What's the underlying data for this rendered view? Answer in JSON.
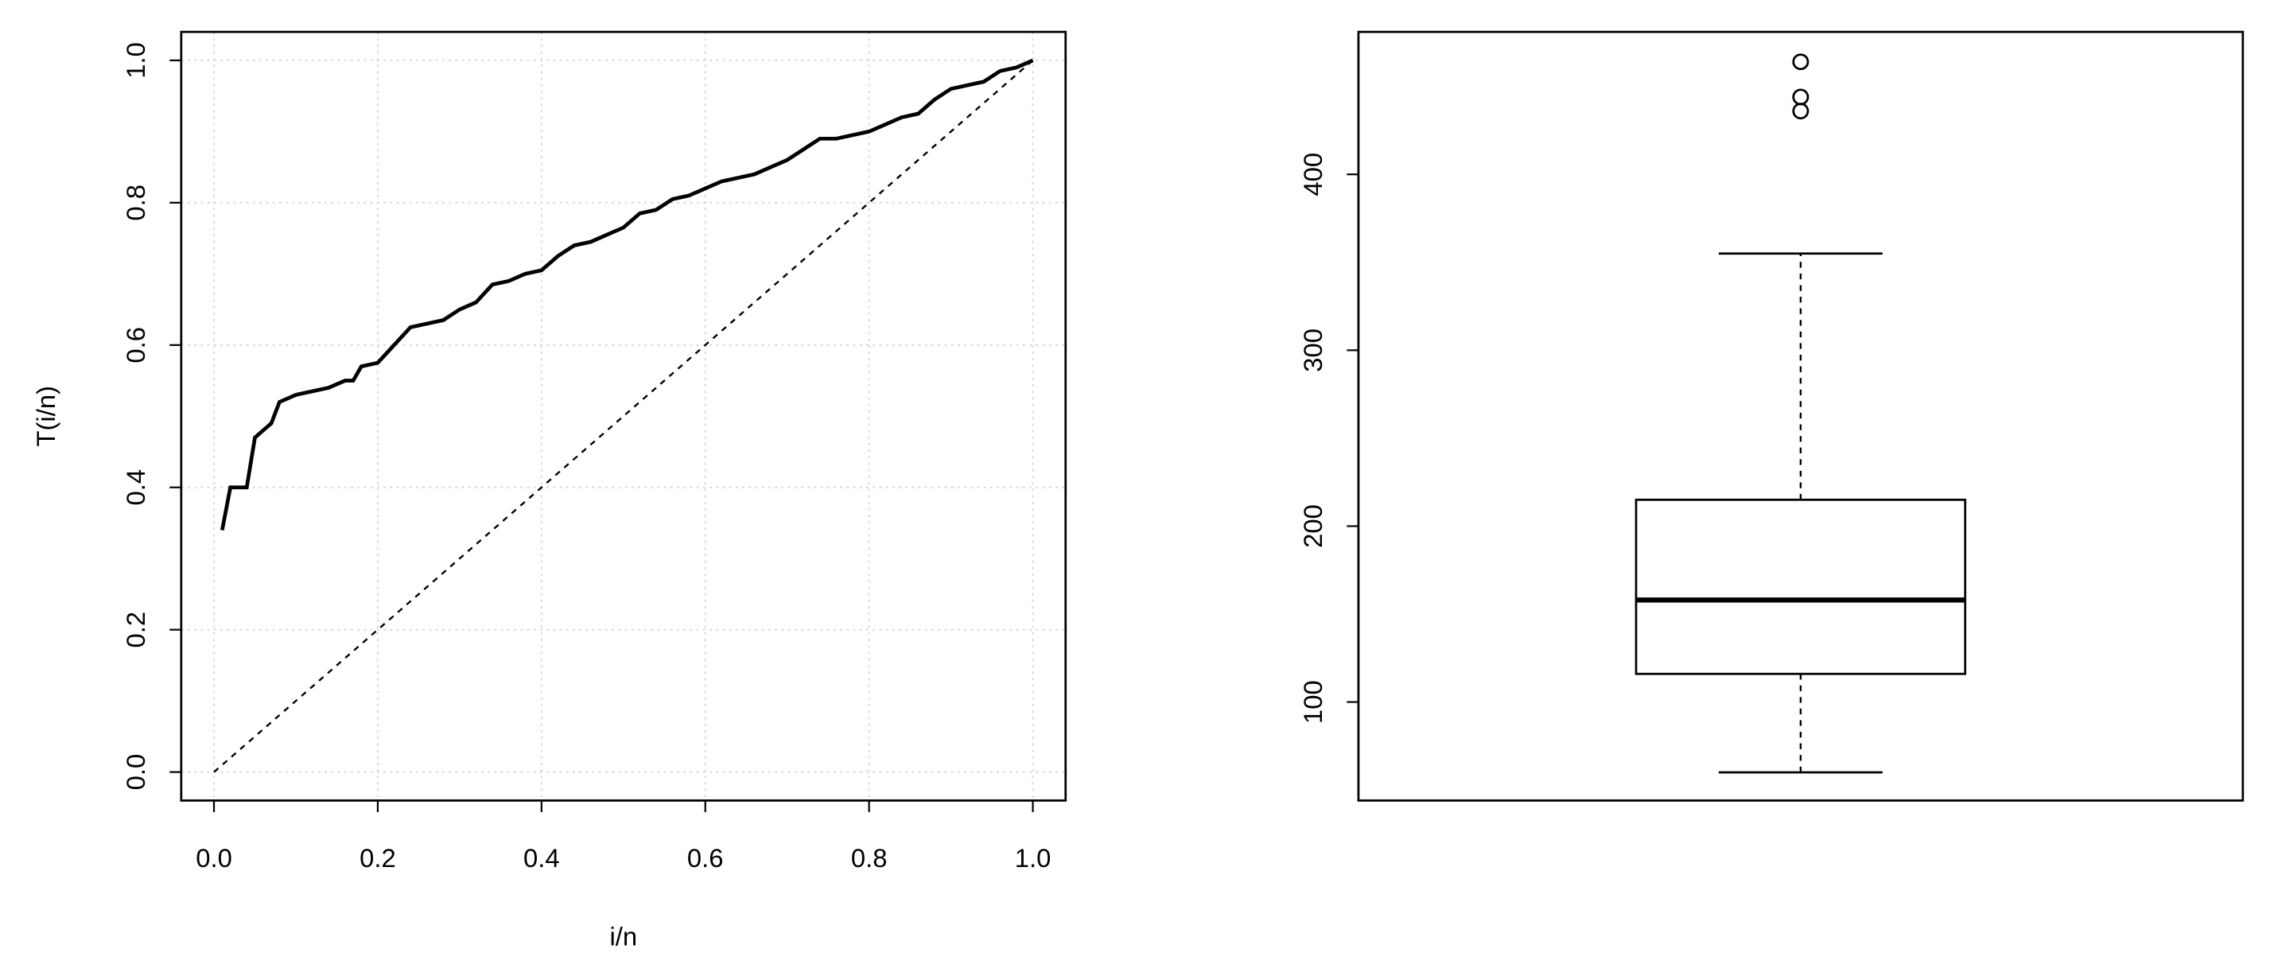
{
  "chart_data": [
    {
      "type": "line",
      "xlabel": "i/n",
      "ylabel": "T(i/n)",
      "xlim": [
        -0.04,
        1.04
      ],
      "ylim": [
        -0.04,
        1.04
      ],
      "xticks": [
        {
          "value": 0,
          "label": "0.0"
        },
        0.2,
        0.4,
        0.6,
        0.8,
        {
          "value": 1,
          "label": "1.0"
        }
      ],
      "yticks": [
        {
          "value": 0,
          "label": "0.0"
        },
        0.2,
        0.4,
        0.6,
        0.8,
        {
          "value": 1,
          "label": "1.0"
        }
      ],
      "grid": true,
      "series": [
        {
          "color": "#000000",
          "linestyle": "solid",
          "x": [
            0.01,
            0.02,
            0.04,
            0.05,
            0.06,
            0.07,
            0.08,
            0.1,
            0.12,
            0.14,
            0.16,
            0.17,
            0.18,
            0.2,
            0.22,
            0.24,
            0.26,
            0.28,
            0.3,
            0.32,
            0.34,
            0.36,
            0.38,
            0.4,
            0.42,
            0.44,
            0.46,
            0.48,
            0.5,
            0.52,
            0.54,
            0.56,
            0.58,
            0.6,
            0.62,
            0.64,
            0.66,
            0.68,
            0.7,
            0.72,
            0.74,
            0.76,
            0.78,
            0.8,
            0.82,
            0.84,
            0.86,
            0.88,
            0.9,
            0.92,
            0.94,
            0.96,
            0.98,
            1.0
          ],
          "values": [
            0.34,
            0.4,
            0.4,
            0.47,
            0.48,
            0.49,
            0.52,
            0.53,
            0.535,
            0.54,
            0.55,
            0.55,
            0.57,
            0.575,
            0.6,
            0.625,
            0.63,
            0.635,
            0.65,
            0.66,
            0.685,
            0.69,
            0.7,
            0.705,
            0.725,
            0.74,
            0.745,
            0.755,
            0.765,
            0.785,
            0.79,
            0.805,
            0.81,
            0.82,
            0.83,
            0.835,
            0.84,
            0.85,
            0.86,
            0.875,
            0.89,
            0.89,
            0.895,
            0.9,
            0.91,
            0.92,
            0.925,
            0.945,
            0.96,
            0.965,
            0.97,
            0.985,
            0.99,
            1.0
          ]
        },
        {
          "color": "#000000",
          "linestyle": "dashed",
          "x": [
            0,
            1
          ],
          "values": [
            0,
            1
          ]
        }
      ]
    },
    {
      "type": "box",
      "ylim": [
        44,
        481
      ],
      "yticks": [
        100,
        200,
        300,
        400
      ],
      "min": 60,
      "q1": 116,
      "median": 158,
      "q3": 215,
      "max": 355,
      "outliers": [
        464,
        444,
        436
      ],
      "color": "#000000"
    }
  ]
}
